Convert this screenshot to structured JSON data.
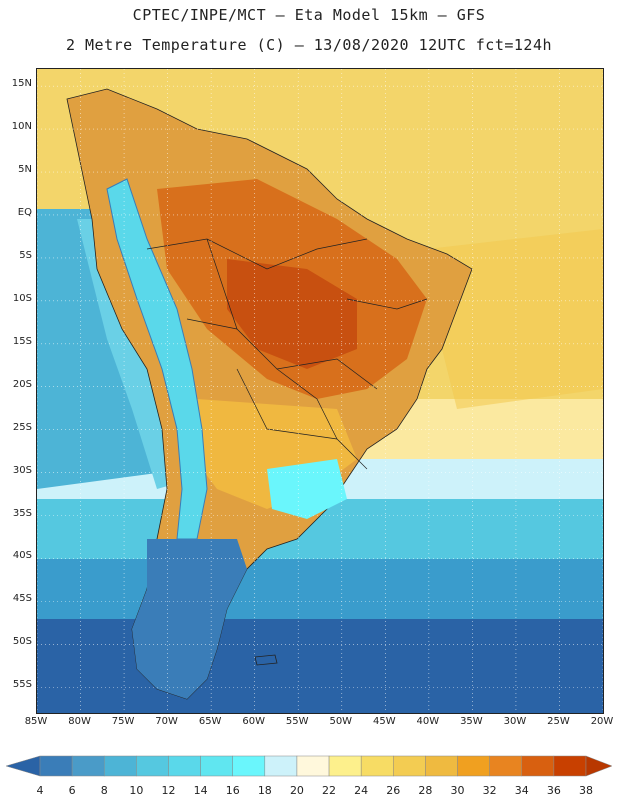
{
  "title": {
    "line1": "CPTEC/INPE/MCT –  Eta Model 15km – GFS",
    "line2": "2 Metre Temperature (C) – 13/08/2020 12UTC fct=124h"
  },
  "map": {
    "region": "South America",
    "lon_range": [
      -85,
      -20
    ],
    "lat_range": [
      -58,
      17
    ],
    "lat_labels": [
      "15N",
      "10N",
      "5N",
      "EQ",
      "5S",
      "10S",
      "15S",
      "20S",
      "25S",
      "30S",
      "35S",
      "40S",
      "45S",
      "50S",
      "55S"
    ],
    "lat_values": [
      15,
      10,
      5,
      0,
      -5,
      -10,
      -15,
      -20,
      -25,
      -30,
      -35,
      -40,
      -45,
      -50,
      -55
    ],
    "lon_labels": [
      "85W",
      "80W",
      "75W",
      "70W",
      "65W",
      "60W",
      "55W",
      "50W",
      "45W",
      "40W",
      "35W",
      "30W",
      "25W",
      "20W"
    ],
    "lon_values": [
      -85,
      -80,
      -75,
      -70,
      -65,
      -60,
      -55,
      -50,
      -45,
      -40,
      -35,
      -30,
      -25,
      -20
    ]
  },
  "colorbar": {
    "labels": [
      "4",
      "6",
      "8",
      "10",
      "12",
      "14",
      "16",
      "18",
      "20",
      "22",
      "24",
      "26",
      "28",
      "30",
      "32",
      "34",
      "36",
      "38"
    ],
    "colors": [
      "#2a63a6",
      "#3a7db8",
      "#4a9bc8",
      "#4db4d6",
      "#55c8e0",
      "#5ad8ea",
      "#60e6f0",
      "#6af6fc",
      "#cdf2fa",
      "#fff8dc",
      "#fdf08c",
      "#f7dc64",
      "#f3cc52",
      "#efba40",
      "#f0a020",
      "#e88420",
      "#d86010",
      "#c84000",
      "#b83800"
    ]
  }
}
